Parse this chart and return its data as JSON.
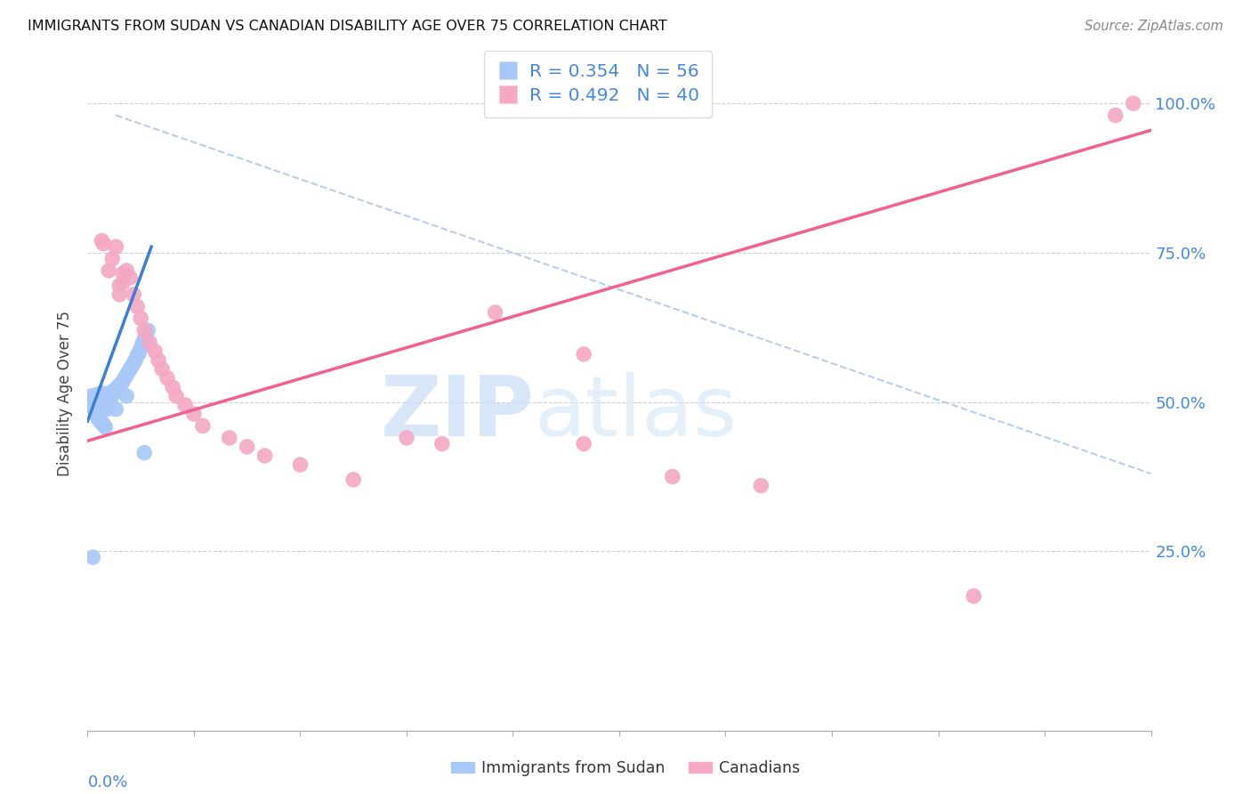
{
  "title": "IMMIGRANTS FROM SUDAN VS CANADIAN DISABILITY AGE OVER 75 CORRELATION CHART",
  "source": "Source: ZipAtlas.com",
  "ylabel": "Disability Age Over 75",
  "legend_label1": "Immigrants from Sudan",
  "legend_label2": "Canadians",
  "legend_r1": "R = 0.354",
  "legend_n1": "N = 56",
  "legend_r2": "R = 0.492",
  "legend_n2": "N = 40",
  "watermark_zip": "ZIP",
  "watermark_atlas": "atlas",
  "sudan_color": "#a8c8f8",
  "canada_color": "#f4a8c4",
  "sudan_line_color": "#3a7fd4",
  "canada_line_color": "#f06090",
  "diagonal_color": "#b0c8e8",
  "xlim": [
    0.0,
    0.6
  ],
  "ylim": [
    -0.05,
    1.08
  ],
  "plot_ylim": [
    0.28,
    1.08
  ],
  "figsize": [
    14.06,
    8.92
  ],
  "dpi": 100,
  "sudan_points": [
    [
      0.001,
      0.505
    ],
    [
      0.001,
      0.495
    ],
    [
      0.002,
      0.51
    ],
    [
      0.002,
      0.5
    ],
    [
      0.003,
      0.505
    ],
    [
      0.003,
      0.498
    ],
    [
      0.003,
      0.49
    ],
    [
      0.004,
      0.508
    ],
    [
      0.004,
      0.502
    ],
    [
      0.005,
      0.512
    ],
    [
      0.005,
      0.495
    ],
    [
      0.005,
      0.488
    ],
    [
      0.006,
      0.505
    ],
    [
      0.006,
      0.498
    ],
    [
      0.007,
      0.51
    ],
    [
      0.007,
      0.5
    ],
    [
      0.008,
      0.515
    ],
    [
      0.008,
      0.492
    ],
    [
      0.009,
      0.508
    ],
    [
      0.01,
      0.505
    ],
    [
      0.01,
      0.495
    ],
    [
      0.011,
      0.512
    ],
    [
      0.011,
      0.488
    ],
    [
      0.012,
      0.51
    ],
    [
      0.013,
      0.505
    ],
    [
      0.014,
      0.518
    ],
    [
      0.015,
      0.515
    ],
    [
      0.016,
      0.52
    ],
    [
      0.016,
      0.488
    ],
    [
      0.017,
      0.525
    ],
    [
      0.018,
      0.528
    ],
    [
      0.019,
      0.53
    ],
    [
      0.02,
      0.535
    ],
    [
      0.021,
      0.54
    ],
    [
      0.022,
      0.545
    ],
    [
      0.022,
      0.51
    ],
    [
      0.023,
      0.55
    ],
    [
      0.024,
      0.555
    ],
    [
      0.025,
      0.56
    ],
    [
      0.026,
      0.565
    ],
    [
      0.027,
      0.57
    ],
    [
      0.028,
      0.578
    ],
    [
      0.029,
      0.582
    ],
    [
      0.03,
      0.59
    ],
    [
      0.031,
      0.598
    ],
    [
      0.032,
      0.605
    ],
    [
      0.033,
      0.612
    ],
    [
      0.034,
      0.62
    ],
    [
      0.005,
      0.478
    ],
    [
      0.006,
      0.472
    ],
    [
      0.007,
      0.468
    ],
    [
      0.008,
      0.465
    ],
    [
      0.009,
      0.462
    ],
    [
      0.01,
      0.458
    ],
    [
      0.003,
      0.24
    ],
    [
      0.032,
      0.415
    ]
  ],
  "canada_points": [
    [
      0.008,
      0.77
    ],
    [
      0.009,
      0.765
    ],
    [
      0.012,
      0.72
    ],
    [
      0.014,
      0.74
    ],
    [
      0.016,
      0.76
    ],
    [
      0.018,
      0.695
    ],
    [
      0.018,
      0.68
    ],
    [
      0.02,
      0.715
    ],
    [
      0.02,
      0.7
    ],
    [
      0.022,
      0.72
    ],
    [
      0.024,
      0.708
    ],
    [
      0.026,
      0.68
    ],
    [
      0.028,
      0.66
    ],
    [
      0.03,
      0.64
    ],
    [
      0.032,
      0.62
    ],
    [
      0.035,
      0.6
    ],
    [
      0.038,
      0.585
    ],
    [
      0.04,
      0.57
    ],
    [
      0.042,
      0.555
    ],
    [
      0.045,
      0.54
    ],
    [
      0.048,
      0.525
    ],
    [
      0.05,
      0.51
    ],
    [
      0.055,
      0.495
    ],
    [
      0.06,
      0.48
    ],
    [
      0.065,
      0.46
    ],
    [
      0.08,
      0.44
    ],
    [
      0.09,
      0.425
    ],
    [
      0.1,
      0.41
    ],
    [
      0.12,
      0.395
    ],
    [
      0.15,
      0.37
    ],
    [
      0.18,
      0.44
    ],
    [
      0.2,
      0.43
    ],
    [
      0.23,
      0.65
    ],
    [
      0.28,
      0.43
    ],
    [
      0.33,
      0.375
    ],
    [
      0.38,
      0.36
    ],
    [
      0.5,
      0.175
    ],
    [
      0.28,
      0.58
    ],
    [
      0.58,
      0.98
    ],
    [
      0.59,
      1.0
    ]
  ],
  "sudan_line": {
    "x0": 0.0,
    "y0": 0.468,
    "x1": 0.036,
    "y1": 0.76
  },
  "canada_line": {
    "x0": 0.0,
    "y0": 0.435,
    "x1": 0.6,
    "y1": 0.955
  },
  "diagonal_line": {
    "x0": 0.016,
    "y0": 0.98,
    "x1": 0.6,
    "y1": 0.38
  }
}
